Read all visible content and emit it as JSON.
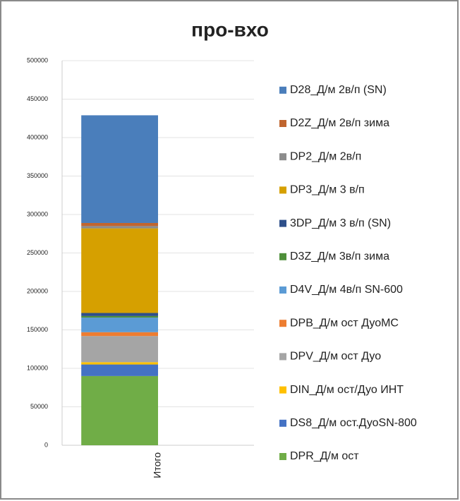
{
  "chart_data": {
    "type": "stacked_bar",
    "title": "про-вхо",
    "categories": [
      "Итого"
    ],
    "ylim": [
      0,
      500000
    ],
    "yticks": [
      0,
      50000,
      100000,
      150000,
      200000,
      250000,
      300000,
      350000,
      400000,
      450000,
      500000
    ],
    "grid": true,
    "legend": "right",
    "series": [
      {
        "name": "DPR_Д/м ост",
        "color": "#70ad47",
        "values": [
          90000
        ]
      },
      {
        "name": "DS8_Д/м ост.ДуоSN-800",
        "color": "#4472c4",
        "values": [
          15000
        ]
      },
      {
        "name": "DIN_Д/м ост/Дуо ИНТ",
        "color": "#ffc000",
        "values": [
          3000
        ]
      },
      {
        "name": "DPV_Д/м ост Дуо",
        "color": "#a5a5a5",
        "values": [
          34000
        ]
      },
      {
        "name": "DPB_Д/м ост ДуоМС",
        "color": "#ed7d31",
        "values": [
          5000
        ]
      },
      {
        "name": "D4V_Д/м 4в/п SN-600",
        "color": "#5b9bd5",
        "values": [
          19000
        ]
      },
      {
        "name": "D3Z_Д/м 3в/п зима",
        "color": "#4e8f3a",
        "values": [
          2000
        ]
      },
      {
        "name": "3DP_Д/м 3 в/п (SN)",
        "color": "#2e4f8a",
        "values": [
          4000
        ]
      },
      {
        "name": "DP3_Д/м 3 в/п",
        "color": "#d6a000",
        "values": [
          110000
        ]
      },
      {
        "name": "DP2_Д/м 2в/п",
        "color": "#8c8c8c",
        "values": [
          3000
        ]
      },
      {
        "name": "D2Z_Д/м 2в/п зима",
        "color": "#c0652f",
        "values": [
          4000
        ]
      },
      {
        "name": "D28_Д/м 2в/п (SN)",
        "color": "#4a7ebb",
        "values": [
          140000
        ]
      }
    ]
  }
}
